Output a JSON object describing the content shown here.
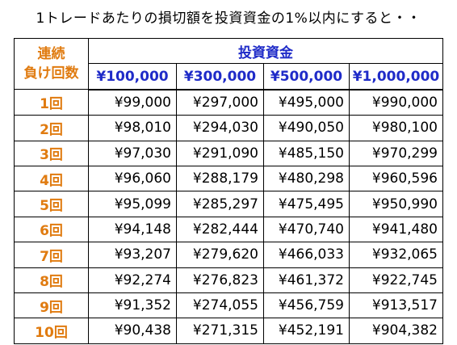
{
  "title": "1トレードあたりの損切額を投資資金の1%以内にすると・・",
  "header": {
    "corner_line1": "連続",
    "corner_line2": "負け回数",
    "group_label": "投資資金",
    "capitals": [
      "¥100,000",
      "¥300,000",
      "¥500,000",
      "¥1,000,000"
    ]
  },
  "rows": [
    {
      "label": "1回",
      "values": [
        "¥99,000",
        "¥297,000",
        "¥495,000",
        "¥990,000"
      ]
    },
    {
      "label": "2回",
      "values": [
        "¥98,010",
        "¥294,030",
        "¥490,050",
        "¥980,100"
      ]
    },
    {
      "label": "3回",
      "values": [
        "¥97,030",
        "¥291,090",
        "¥485,150",
        "¥970,299"
      ]
    },
    {
      "label": "4回",
      "values": [
        "¥96,060",
        "¥288,179",
        "¥480,298",
        "¥960,596"
      ]
    },
    {
      "label": "5回",
      "values": [
        "¥95,099",
        "¥285,297",
        "¥475,495",
        "¥950,990"
      ]
    },
    {
      "label": "6回",
      "values": [
        "¥94,148",
        "¥282,444",
        "¥470,740",
        "¥941,480"
      ]
    },
    {
      "label": "7回",
      "values": [
        "¥93,207",
        "¥279,620",
        "¥466,033",
        "¥932,065"
      ]
    },
    {
      "label": "8回",
      "values": [
        "¥92,274",
        "¥276,823",
        "¥461,372",
        "¥922,745"
      ]
    },
    {
      "label": "9回",
      "values": [
        "¥91,352",
        "¥274,055",
        "¥456,759",
        "¥913,517"
      ]
    },
    {
      "label": "10回",
      "values": [
        "¥90,438",
        "¥271,315",
        "¥452,191",
        "¥904,382"
      ]
    }
  ],
  "colors": {
    "label_orange": "#E07B10",
    "header_blue": "#1F2BC8"
  }
}
